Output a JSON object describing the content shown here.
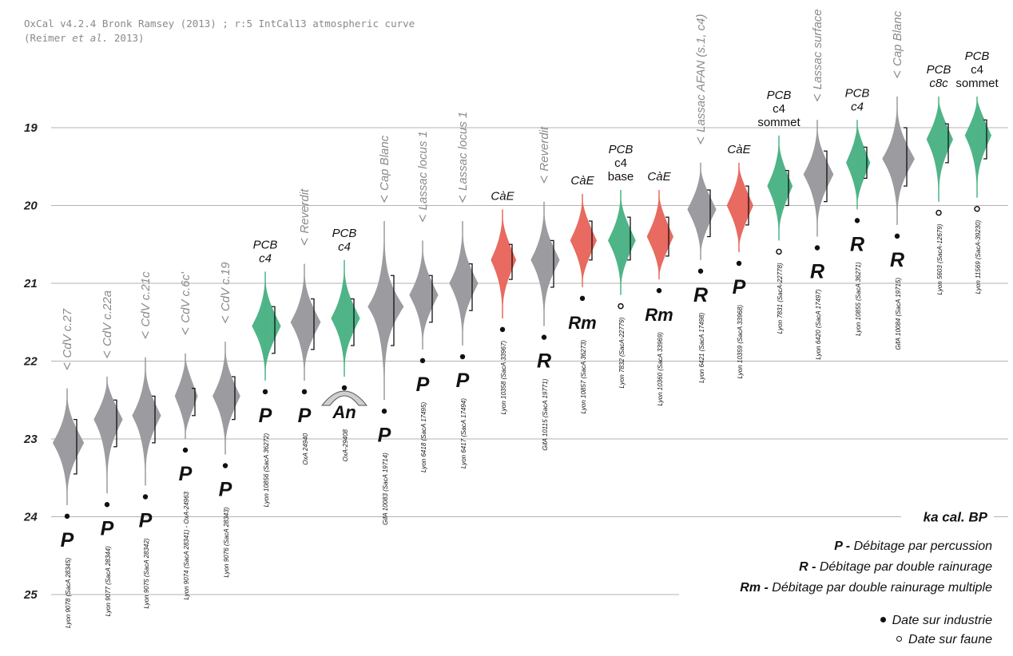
{
  "header": {
    "line1": "OxCal v4.2.4 Bronk Ramsey (2013) ; r:5 IntCal13 atmospheric curve",
    "line2_pre": "(Reimer ",
    "line2_em": "et al.",
    "line2_post": " 2013)"
  },
  "unit_label": "ka cal. BP",
  "colors": {
    "grey": "#9b9ba0",
    "green": "#4fb487",
    "red": "#e86a60",
    "site": "#8a8a8a"
  },
  "legend": {
    "items": [
      {
        "code": "P",
        "text": "Débitage par percussion"
      },
      {
        "code": "R",
        "text": "Débitage par double rainurage"
      },
      {
        "code": "Rm",
        "text": "Débitage par double rainurage multiple"
      }
    ],
    "symbols": [
      {
        "type": "filled",
        "text": "Date sur industrie"
      },
      {
        "type": "open",
        "text": "Date sur faune"
      }
    ]
  },
  "chart_data": {
    "type": "distribution",
    "y_axis": {
      "label": "ka cal. BP",
      "ticks": [
        19,
        20,
        21,
        22,
        23,
        24,
        25
      ],
      "range": [
        18.1,
        25.3
      ],
      "reversed": true,
      "grid": true
    },
    "dates": [
      {
        "lab": "Lyon 9078 (SacA 28345)",
        "site": "CdV c.27",
        "color": "grey",
        "median": 23.05,
        "range": [
          22.75,
          23.45
        ],
        "low": 22.35,
        "high": 23.85,
        "code": "P",
        "material": "filled"
      },
      {
        "lab": "Lyon 9077 (SacA 28344)",
        "site": "CdV c.22a",
        "color": "grey",
        "median": 22.75,
        "range": [
          22.5,
          23.1
        ],
        "low": 22.2,
        "high": 23.7,
        "code": "P",
        "material": "filled"
      },
      {
        "lab": "Lyon 9075 (SacA 28342)",
        "site": "CdV c.21c",
        "color": "grey",
        "median": 22.7,
        "range": [
          22.45,
          23.05
        ],
        "low": 21.95,
        "high": 23.6,
        "code": "P",
        "material": "filled"
      },
      {
        "lab": "Lyon 9074 (SacA 28341) - OxA-24963",
        "site": "CdV c.6c'",
        "color": "grey",
        "median": 22.45,
        "range": [
          22.35,
          22.7
        ],
        "low": 21.9,
        "high": 23.0,
        "code": "P",
        "material": "filled"
      },
      {
        "lab": "Lyon 9076 (SacA 28343)",
        "site": "CdV c.19",
        "color": "grey",
        "median": 22.45,
        "range": [
          22.2,
          22.75
        ],
        "low": 21.75,
        "high": 23.2,
        "code": "P",
        "material": "filled"
      },
      {
        "lab": "Lyon 10856 (SacA 36272)",
        "site": "PCB c4",
        "color": "green",
        "median": 21.55,
        "range": [
          21.3,
          21.9
        ],
        "low": 20.85,
        "high": 22.25,
        "code": "P",
        "material": "filled"
      },
      {
        "lab": "OxA 24940",
        "site": "Reverdit",
        "color": "grey",
        "median": 21.5,
        "range": [
          21.2,
          21.85
        ],
        "low": 20.75,
        "high": 22.25,
        "code": "P",
        "material": "filled"
      },
      {
        "lab": "OxA-29408",
        "site": "PCB c4",
        "color": "green",
        "median": 21.45,
        "range": [
          21.2,
          21.8
        ],
        "low": 20.7,
        "high": 22.2,
        "code": "An",
        "material": "filled"
      },
      {
        "lab": "GifA 10083 (SacA 19714)",
        "site": "Cap Blanc",
        "color": "grey",
        "median": 21.3,
        "range": [
          20.9,
          21.8
        ],
        "low": 20.2,
        "high": 22.5,
        "code": "P",
        "material": "filled"
      },
      {
        "lab": "Lyon 6418 (SacA 17495)",
        "site": "Lassac locus 1",
        "color": "grey",
        "median": 21.15,
        "range": [
          20.9,
          21.5
        ],
        "low": 20.45,
        "high": 21.85,
        "code": "P",
        "material": "filled"
      },
      {
        "lab": "Lyon 6417 (SacA 17494)",
        "site": "Lassac locus 1",
        "color": "grey",
        "median": 21.0,
        "range": [
          20.75,
          21.35
        ],
        "low": 20.2,
        "high": 21.8,
        "code": "P",
        "material": "filled"
      },
      {
        "lab": "Lyon 10358 (SacA 33967)",
        "site": "CàE",
        "color": "red",
        "median": 20.7,
        "range": [
          20.5,
          20.95
        ],
        "low": 20.05,
        "high": 21.45,
        "code": "",
        "material": "filled"
      },
      {
        "lab": "GifA 10115 (SacA 19771)",
        "site": "Reverdit",
        "color": "grey",
        "median": 20.7,
        "range": [
          20.45,
          21.05
        ],
        "low": 19.95,
        "high": 21.55,
        "code": "R",
        "material": "filled"
      },
      {
        "lab": "Lyon 10857 (SacA 36273)",
        "site": "CàE",
        "color": "red",
        "median": 20.45,
        "range": [
          20.2,
          20.7
        ],
        "low": 19.85,
        "high": 21.05,
        "code": "Rm",
        "material": "filled"
      },
      {
        "lab": "Lyon 7832 (SacA-22779)",
        "site": "PCB c4 base",
        "color": "green",
        "median": 20.45,
        "range": [
          20.15,
          20.7
        ],
        "low": 19.8,
        "high": 21.15,
        "code": "",
        "material": "open"
      },
      {
        "lab": "Lyon 10360 (SacA 33969)",
        "site": "CàE",
        "color": "red",
        "median": 20.4,
        "range": [
          20.15,
          20.65
        ],
        "low": 19.8,
        "high": 20.95,
        "code": "Rm",
        "material": "filled"
      },
      {
        "lab": "Lyon 6421 (SacA 17498)",
        "site": "Lassac AFAN (s.1, c4)",
        "color": "grey",
        "median": 20.05,
        "range": [
          19.8,
          20.4
        ],
        "low": 19.45,
        "high": 20.7,
        "code": "R",
        "material": "filled"
      },
      {
        "lab": "Lyon 10359 (SacA 33968)",
        "site": "CàE",
        "color": "red",
        "median": 20.0,
        "range": [
          19.75,
          20.25
        ],
        "low": 19.45,
        "high": 20.6,
        "code": "P",
        "material": "filled"
      },
      {
        "lab": "Lyon 7831 (SacA-22778)",
        "site": "PCB c4 sommet",
        "color": "green",
        "median": 19.75,
        "range": [
          19.55,
          20.0
        ],
        "low": 19.1,
        "high": 20.45,
        "code": "",
        "material": "open"
      },
      {
        "lab": "Lyon 6420 (SacA 17497)",
        "site": "Lassac surface",
        "color": "grey",
        "median": 19.6,
        "range": [
          19.3,
          19.95
        ],
        "low": 18.9,
        "high": 20.4,
        "code": "R",
        "material": "filled"
      },
      {
        "lab": "Lyon 10855 (SacA 36271)",
        "site": "PCB c4",
        "color": "green",
        "median": 19.45,
        "range": [
          19.25,
          19.65
        ],
        "low": 18.9,
        "high": 20.05,
        "code": "R",
        "material": "filled"
      },
      {
        "lab": "GifA 10084 (SacA 19715)",
        "site": "Cap Blanc",
        "color": "grey",
        "median": 19.4,
        "range": [
          19.0,
          19.75
        ],
        "low": 18.6,
        "high": 20.25,
        "code": "R",
        "material": "filled"
      },
      {
        "lab": "Lyon 5603 (SacA-12679)",
        "site": "PCB c8c",
        "color": "green",
        "median": 19.15,
        "range": [
          18.95,
          19.45
        ],
        "low": 18.6,
        "high": 19.95,
        "code": "",
        "material": "open"
      },
      {
        "lab": "Lyon 11569 (SacA-39230)",
        "site": "PCB c4 sommet",
        "color": "green",
        "median": 19.1,
        "range": [
          18.9,
          19.4
        ],
        "low": 18.6,
        "high": 19.9,
        "code": "",
        "material": "open"
      }
    ]
  }
}
